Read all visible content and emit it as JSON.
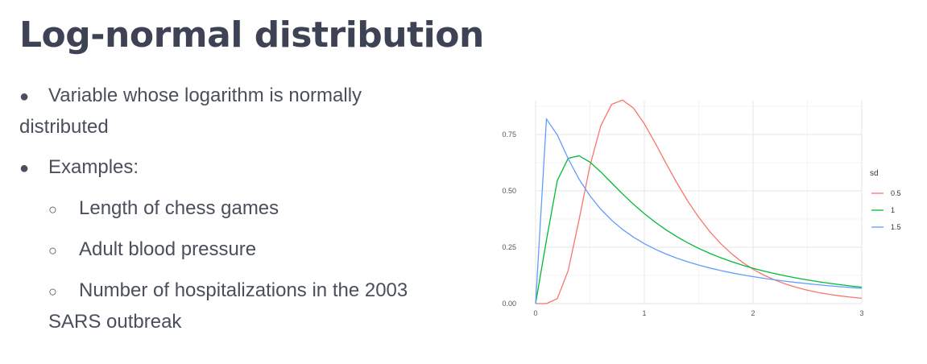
{
  "slide": {
    "title": "Log-normal distribution",
    "bullets": [
      {
        "text": "Variable whose logarithm is normally distributed"
      },
      {
        "text": "Examples:",
        "sub": [
          "Length of chess games",
          "Adult blood pressure",
          "Number of hospitalizations in the 2003 SARS outbreak"
        ]
      }
    ]
  },
  "chart_data": {
    "type": "line",
    "xlim": [
      0,
      3
    ],
    "ylim": [
      0,
      0.9
    ],
    "x_ticks": [
      0,
      1,
      2,
      3
    ],
    "y_ticks": [
      "0.00",
      "0.25",
      "0.50",
      "0.75"
    ],
    "grid": true,
    "legend": {
      "title": "sd",
      "placement": "right"
    },
    "series": [
      {
        "name": "0.5",
        "sdlog": 0.5,
        "color": "#f8766d"
      },
      {
        "name": "1",
        "sdlog": 1.0,
        "color": "#00ba38"
      },
      {
        "name": "1.5",
        "sdlog": 1.5,
        "color": "#619cff"
      }
    ]
  }
}
